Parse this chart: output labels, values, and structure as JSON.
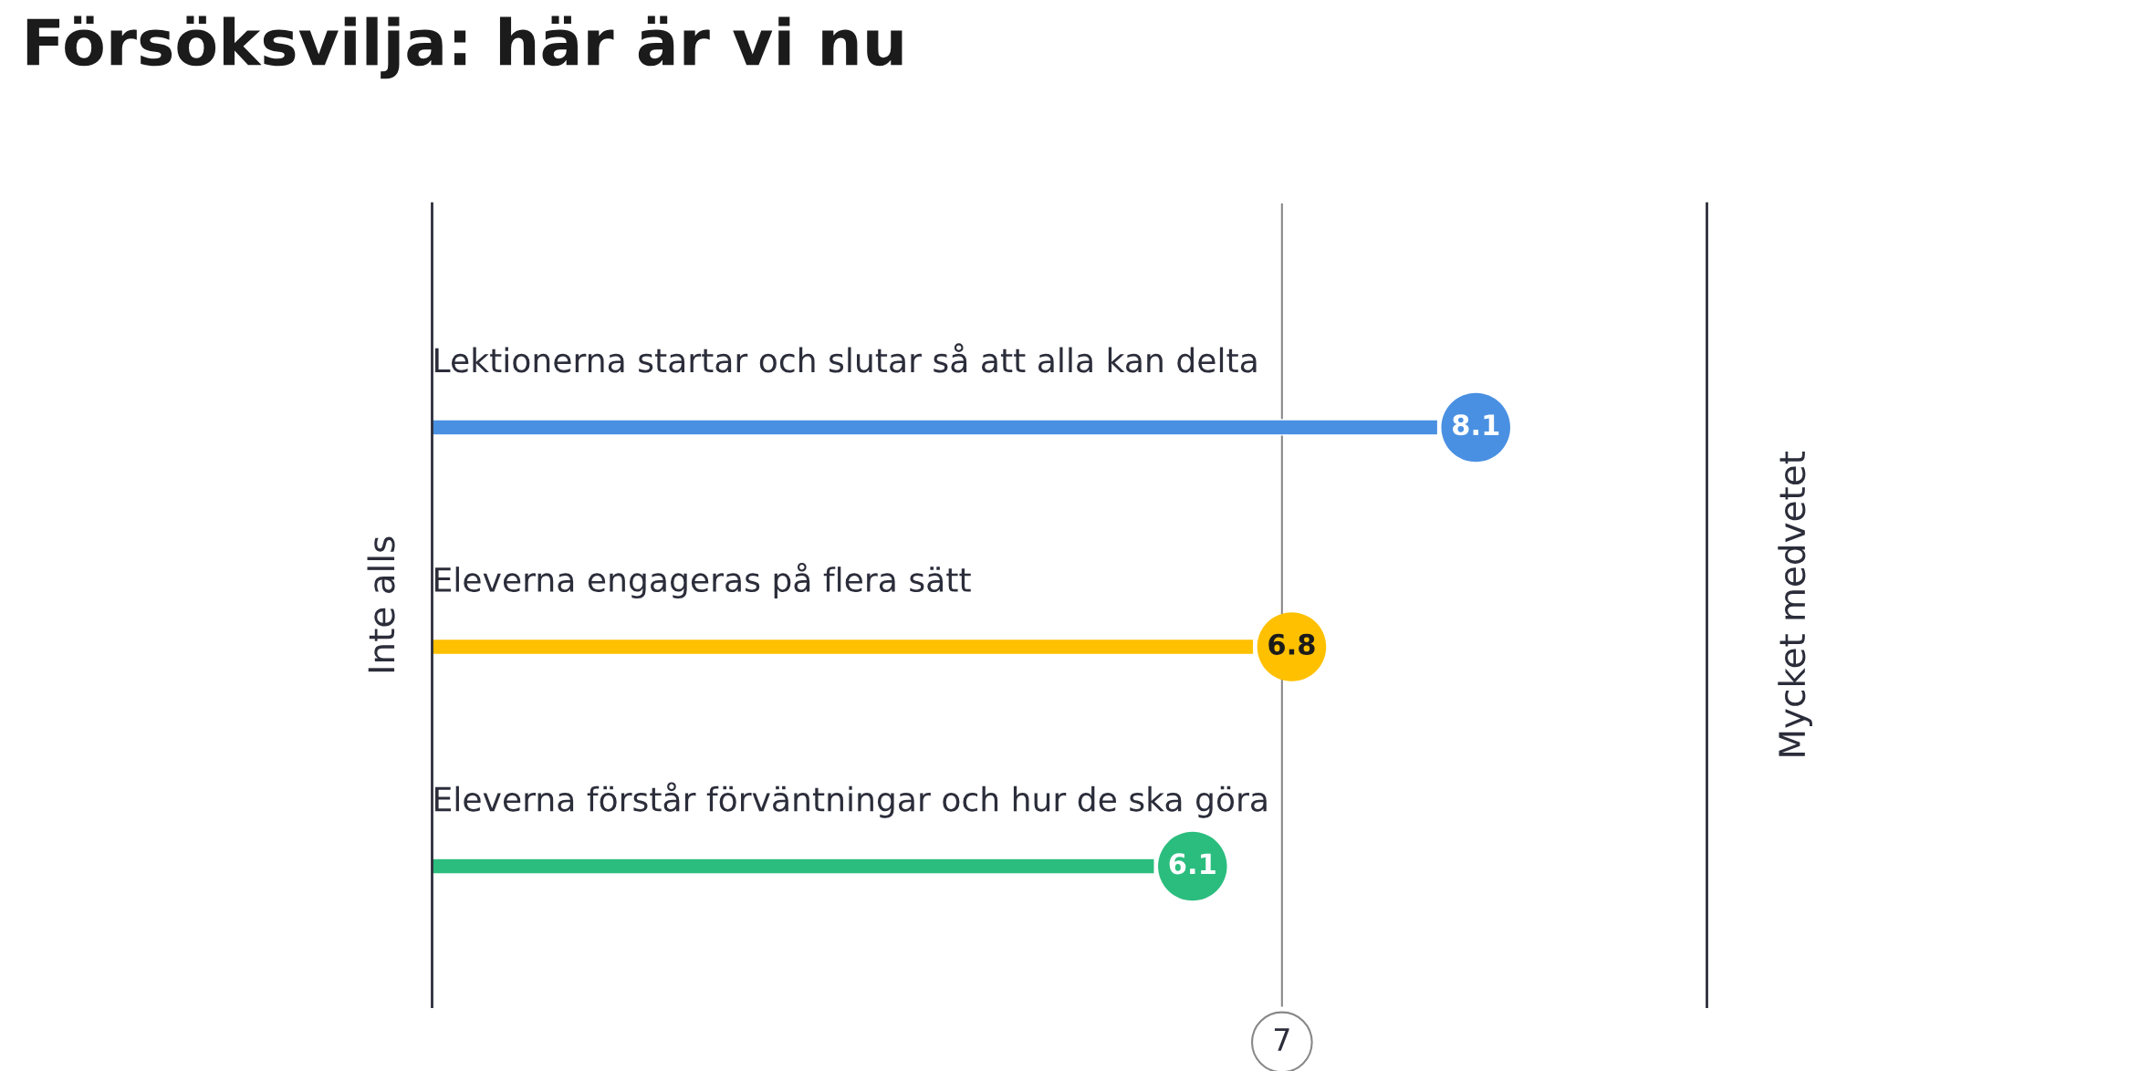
{
  "chart_data": {
    "type": "bar",
    "orientation": "horizontal",
    "title": "Försöksvilja: här är vi nu",
    "ylabel": "Inte alls",
    "y2label": "Mycket medvetet",
    "categories": [
      "Lektionerna startar och slutar så att alla kan delta",
      "Eleverna engageras på flera sätt",
      "Eleverna förstår förväntningar och hur de ska göra"
    ],
    "values": [
      8.1,
      6.8,
      6.1
    ],
    "colors": [
      "#4a90e2",
      "#ffc000",
      "#2bbd7e"
    ],
    "xlim": [
      1,
      10
    ],
    "data_labels": true,
    "legend": false,
    "ref_lines": [
      {
        "axis": "x",
        "value": 7,
        "label": "7"
      }
    ]
  }
}
